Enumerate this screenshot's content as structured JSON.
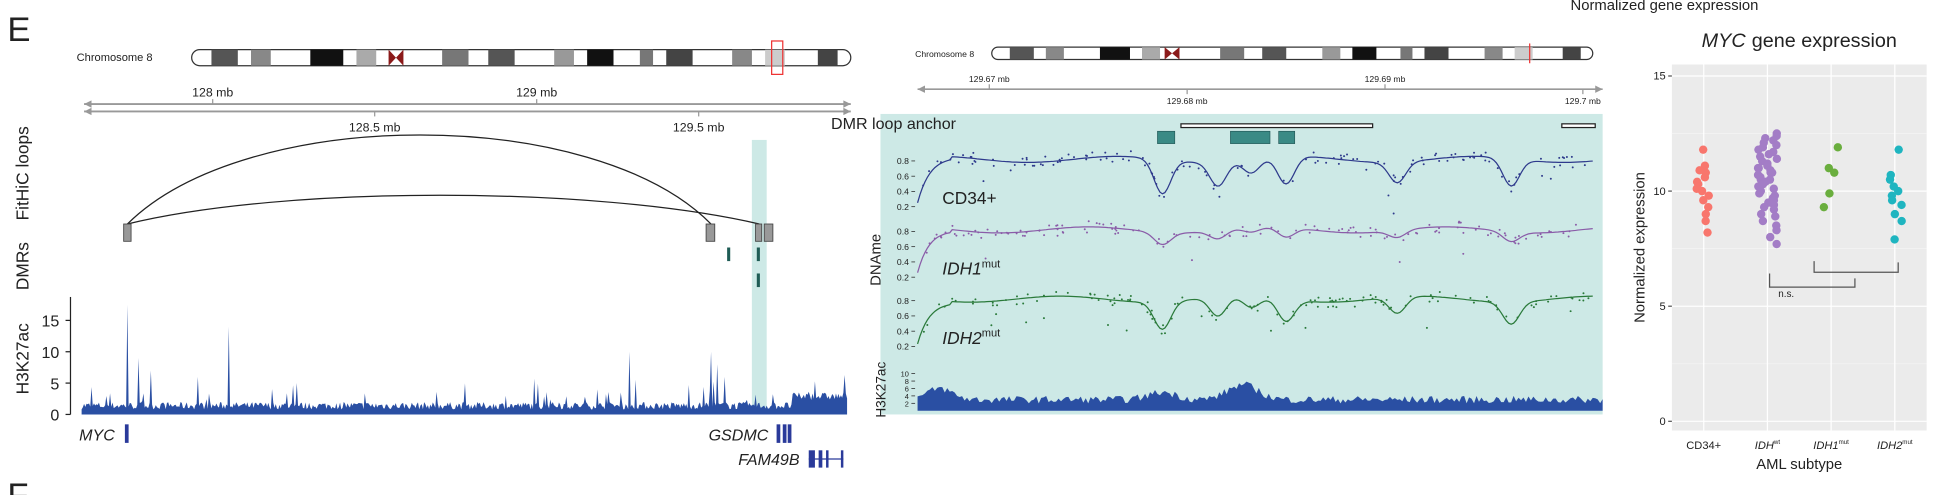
{
  "panel_labels": [
    "E",
    "F"
  ],
  "left": {
    "chromosome": "Chromosome 8",
    "axis_ticks_top": [
      {
        "value": 128,
        "label": "128 mb"
      },
      {
        "value": 129,
        "label": "129 mb"
      }
    ],
    "axis_ticks_bottom": [
      {
        "value": 128.5,
        "label": "128.5 mb"
      },
      {
        "value": 129.5,
        "label": "129.5 mb"
      }
    ],
    "tracks": [
      "FitHiC loops",
      "DMRs",
      "H3K27ac"
    ],
    "h3k27ac_ticks": [
      0,
      5,
      10,
      15
    ],
    "genes": [
      "MYC",
      "GSDMC",
      "FAM49B"
    ]
  },
  "middle": {
    "chromosome": "Chromosome 8",
    "axis_ticks_top": [
      {
        "value": 129.67,
        "label": "129.67 mb"
      },
      {
        "value": 129.69,
        "label": "129.69 mb"
      }
    ],
    "axis_ticks_bottom": [
      {
        "value": 129.68,
        "label": "129.68 mb"
      },
      {
        "value": 129.7,
        "label": "129.7 mb"
      }
    ],
    "anchor_label": "DMR loop anchor",
    "dname_label": "DNAme",
    "dname_ticks": [
      0.2,
      0.4,
      0.6,
      0.8
    ],
    "samples": [
      {
        "name": "CD34+"
      },
      {
        "name": "IDH1",
        "sup": "mut"
      },
      {
        "name": "IDH2",
        "sup": "mut"
      }
    ],
    "h3k27ac_label": "H3K27ac",
    "h3k27ac_ticks": [
      2,
      4,
      6,
      8,
      10
    ]
  },
  "chart_data": {
    "type": "strip",
    "header": "Normalized gene expression",
    "title_gene": "MYC",
    "title": "gene expression",
    "y_label": "Normalized expression",
    "x_label": "AML subtype",
    "annotation": "n.s.",
    "ylim": [
      -0.4,
      15.5
    ],
    "yticks": [
      0,
      5,
      10,
      15
    ],
    "grid": true,
    "series": [
      {
        "name": "CD34+",
        "color": "#f8766d",
        "values": [
          11.8,
          11.1,
          10.9,
          10.8,
          10.6,
          10.4,
          10.3,
          10.1,
          10.0,
          9.8,
          9.6,
          9.3,
          9.0,
          8.7,
          8.2
        ]
      },
      {
        "name": "IDH",
        "sup": "wt",
        "color": "#a37dc6",
        "values": [
          12.5,
          12.4,
          12.3,
          12.2,
          12.1,
          12.0,
          11.9,
          11.8,
          11.7,
          11.6,
          11.5,
          11.4,
          11.3,
          11.2,
          11.1,
          11.0,
          11.0,
          10.9,
          10.8,
          10.8,
          10.7,
          10.6,
          10.5,
          10.5,
          10.4,
          10.3,
          10.2,
          10.1,
          10.0,
          9.9,
          9.8,
          9.7,
          9.6,
          9.5,
          9.4,
          9.3,
          9.2,
          9.0,
          8.9,
          8.7,
          8.5,
          8.3,
          8.0,
          7.7
        ]
      },
      {
        "name": "IDH1",
        "sup": "mut",
        "color": "#6aae3e",
        "values": [
          11.9,
          11.0,
          10.8,
          9.9,
          9.3
        ]
      },
      {
        "name": "IDH2",
        "sup": "mut",
        "color": "#1fb5c0",
        "values": [
          11.8,
          10.7,
          10.5,
          10.2,
          10.0,
          9.8,
          9.6,
          9.4,
          9.0,
          8.7,
          7.9
        ]
      }
    ]
  }
}
